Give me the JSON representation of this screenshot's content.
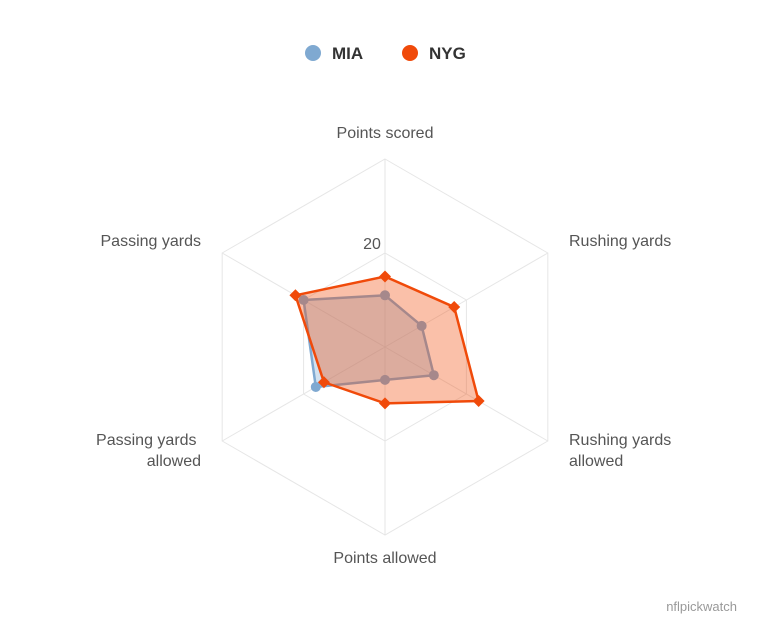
{
  "chart_data": {
    "type": "radar",
    "title": "",
    "axes": [
      "Points scored",
      "Rushing yards",
      "Rushing yards allowed",
      "Points allowed",
      "Passing yards allowed",
      "Passing yards"
    ],
    "tick_labels": [
      "20"
    ],
    "scale_max": 40,
    "grid": true,
    "legend_position": "top-center",
    "series": [
      {
        "name": "MIA",
        "color": "#7fa9d1",
        "values": [
          11,
          9,
          12,
          7,
          17,
          20
        ]
      },
      {
        "name": "NYG",
        "color": "#f04a0a",
        "values": [
          15,
          17,
          23,
          12,
          15,
          22
        ]
      }
    ]
  },
  "credit": "nflpickwatch"
}
